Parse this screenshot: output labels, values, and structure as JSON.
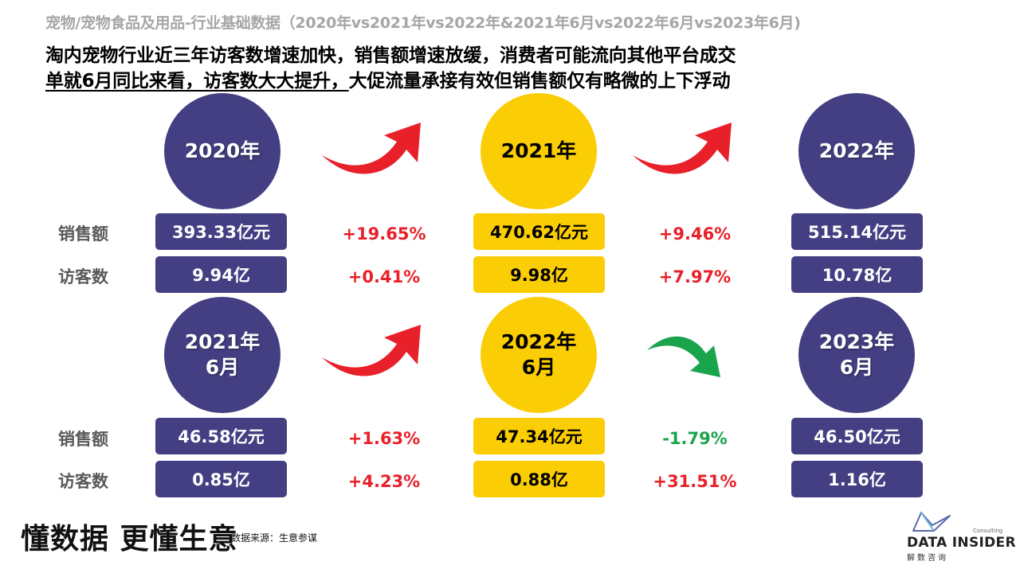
{
  "top_title": "宠物/宠物食品及用品-行业基础数据（2020年vs2021年vs2022年&2021年6月vs2022年6月vs2023年6月)",
  "headline": {
    "line1": "淘内宠物行业近三年访客数增速加快，销售额增速放缓，消费者可能流向其他平台成交",
    "line2_underlined": "单就6月同比来看，访客数大大提升，",
    "line2_rest": "大促流量承接有效但销售额仅有略微的上下浮动"
  },
  "row_labels": {
    "sales": "销售额",
    "visitors": "访客数"
  },
  "annual": {
    "periods": [
      {
        "label": "2020年",
        "sales": "393.33亿元",
        "visitors": "9.94亿"
      },
      {
        "label": "2021年",
        "sales": "470.62亿元",
        "visitors": "9.98亿"
      },
      {
        "label": "2022年",
        "sales": "515.14亿元",
        "visitors": "10.78亿"
      }
    ],
    "changes": [
      {
        "sales": "+19.65%",
        "visitors": "+0.41%",
        "direction": "up"
      },
      {
        "sales": "+9.46%",
        "visitors": "+7.97%",
        "direction": "up"
      }
    ]
  },
  "june": {
    "periods": [
      {
        "label_line1": "2021年",
        "label_line2": "6月",
        "sales": "46.58亿元",
        "visitors": "0.85亿"
      },
      {
        "label_line1": "2022年",
        "label_line2": "6月",
        "sales": "47.34亿元",
        "visitors": "0.88亿"
      },
      {
        "label_line1": "2023年",
        "label_line2": "6月",
        "sales": "46.50亿元",
        "visitors": "1.16亿"
      }
    ],
    "changes": [
      {
        "sales": "+1.63%",
        "visitors": "+4.23%",
        "direction": "up"
      },
      {
        "sales": "-1.79%",
        "visitors": "+31.51%",
        "direction": "down"
      }
    ]
  },
  "colors": {
    "navy": "#433f82",
    "gold": "#fbcd04",
    "up_red": "#e8202a",
    "down_green": "#1aa54d",
    "grey_label": "#595959"
  },
  "footer": {
    "slogan": "懂数据 更懂生意",
    "source": "数据来源：生意参谋",
    "logo_brand": "DATA INSIDER",
    "logo_cn": "解数咨询",
    "logo_consulting": "Consulting"
  }
}
